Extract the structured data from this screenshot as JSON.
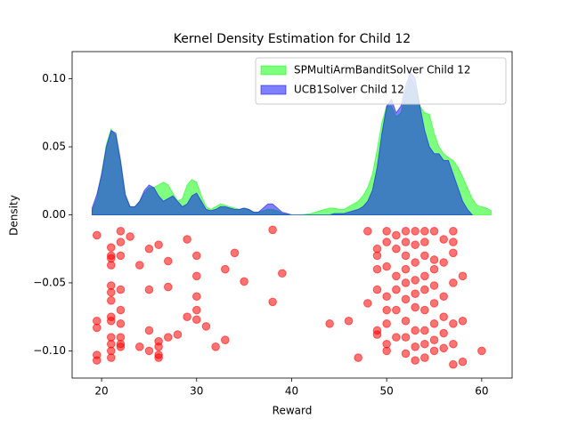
{
  "chart_data": {
    "type": "area",
    "title": "Kernel Density Estimation for Child 12",
    "x_label": "Reward",
    "y_label": "Density",
    "xlim": [
      16.9,
      63.2
    ],
    "ylim": [
      -0.12,
      0.12
    ],
    "xticks": [
      20,
      30,
      40,
      50,
      60
    ],
    "yticks": [
      {
        "value": -0.1,
        "label": "−0.10"
      },
      {
        "value": -0.05,
        "label": "−0.05"
      },
      {
        "value": 0,
        "label": "0.00"
      },
      {
        "value": 0.05,
        "label": "0.05"
      },
      {
        "value": 0.1,
        "label": "0.10"
      }
    ],
    "legend": "upper right",
    "x": [
      19,
      19.5,
      20,
      20.5,
      21,
      21.5,
      22,
      22.5,
      23,
      23.5,
      24,
      24.5,
      25,
      25.5,
      26,
      26.5,
      27,
      27.5,
      28,
      28.5,
      29,
      29.5,
      30,
      30.5,
      31,
      31.5,
      32,
      32.5,
      33,
      33.5,
      34,
      34.5,
      35,
      35.5,
      36,
      36.5,
      37,
      37.5,
      38,
      38.5,
      39,
      39.5,
      40,
      40.5,
      41,
      41.5,
      42,
      42.5,
      43,
      43.5,
      44,
      44.5,
      45,
      45.5,
      46,
      46.5,
      47,
      47.5,
      48,
      48.5,
      49,
      49.5,
      50,
      50.5,
      51,
      51.5,
      52,
      52.5,
      53,
      53.5,
      54,
      54.5,
      55,
      55.5,
      56,
      56.5,
      57,
      57.5,
      58,
      58.5,
      59,
      59.5,
      60,
      60.5,
      61
    ],
    "series": [
      {
        "name": "SPMultiArmBanditSolver Child 12",
        "color": "#00ff00",
        "values": [
          0.003,
          0.012,
          0.03,
          0.052,
          0.063,
          0.058,
          0.038,
          0.014,
          0.006,
          0.006,
          0.01,
          0.016,
          0.02,
          0.02,
          0.022,
          0.024,
          0.022,
          0.016,
          0.01,
          0.012,
          0.022,
          0.026,
          0.024,
          0.014,
          0.006,
          0.004,
          0.006,
          0.008,
          0.007,
          0.006,
          0.005,
          0.004,
          0.005,
          0.004,
          0.002,
          0.002,
          0.003,
          0.004,
          0.004,
          0.003,
          0.001,
          0.0005,
          0,
          0,
          0,
          0.0005,
          0.001,
          0.002,
          0.003,
          0.004,
          0.005,
          0.005,
          0.004,
          0.004,
          0.006,
          0.008,
          0.01,
          0.014,
          0.02,
          0.03,
          0.048,
          0.068,
          0.08,
          0.08,
          0.072,
          0.075,
          0.09,
          0.1,
          0.094,
          0.08,
          0.075,
          0.074,
          0.06,
          0.05,
          0.045,
          0.042,
          0.04,
          0.035,
          0.028,
          0.02,
          0.012,
          0.007,
          0.006,
          0.005,
          0.003
        ]
      },
      {
        "name": "UCB1Solver Child 12",
        "color": "#0000ff",
        "values": [
          0.005,
          0.015,
          0.03,
          0.05,
          0.062,
          0.06,
          0.04,
          0.015,
          0.006,
          0.006,
          0.01,
          0.018,
          0.022,
          0.02,
          0.014,
          0.01,
          0.012,
          0.014,
          0.01,
          0.006,
          0.008,
          0.014,
          0.016,
          0.01,
          0.004,
          0.003,
          0.004,
          0.006,
          0.006,
          0.005,
          0.004,
          0.004,
          0.005,
          0.004,
          0.002,
          0.002,
          0.005,
          0.008,
          0.008,
          0.005,
          0.002,
          0.001,
          0,
          0,
          0,
          0,
          0,
          0,
          0,
          0,
          0,
          0.001,
          0.001,
          0.001,
          0.002,
          0.003,
          0.004,
          0.006,
          0.01,
          0.018,
          0.035,
          0.06,
          0.08,
          0.085,
          0.075,
          0.08,
          0.095,
          0.105,
          0.1,
          0.08,
          0.062,
          0.05,
          0.045,
          0.045,
          0.04,
          0.04,
          0.03,
          0.02,
          0.01,
          0.004,
          0,
          null,
          null,
          null,
          null
        ]
      }
    ],
    "points": {
      "color": "#ff0000",
      "x": [
        19.5,
        19.5,
        19.5,
        19.5,
        19.5,
        21,
        21,
        21,
        21,
        21,
        21,
        21,
        21,
        21,
        21,
        21,
        21,
        21,
        22,
        22,
        22,
        22,
        22,
        22,
        22,
        22,
        22,
        23,
        24,
        24,
        25,
        25,
        25,
        25,
        26,
        26,
        26,
        26,
        26,
        27,
        27,
        27,
        28,
        29,
        29,
        30,
        30,
        30,
        30,
        30,
        31,
        32,
        33,
        33,
        34,
        35,
        38,
        38,
        39,
        44,
        46,
        47,
        48,
        48,
        49,
        49,
        49,
        49,
        49,
        49,
        50,
        50,
        50,
        50,
        50,
        50,
        50,
        50,
        51,
        51,
        51,
        51,
        51,
        51,
        52,
        52,
        52,
        52,
        52,
        52,
        52,
        52,
        52,
        53,
        53,
        53,
        53,
        53,
        53,
        53,
        53,
        53,
        54,
        54,
        54,
        54,
        54,
        54,
        54,
        54,
        54,
        55,
        55,
        55,
        55,
        55,
        55,
        55,
        55,
        56,
        56,
        56,
        56,
        56,
        56,
        57,
        57,
        57,
        57,
        57,
        57,
        57,
        58,
        58,
        58,
        60
      ],
      "y": [
        -0.015,
        -0.078,
        -0.083,
        -0.103,
        -0.107,
        -0.03,
        -0.037,
        -0.052,
        -0.057,
        -0.063,
        -0.075,
        -0.078,
        -0.09,
        -0.095,
        -0.1,
        -0.105,
        -0.024,
        -0.032,
        -0.012,
        -0.02,
        -0.03,
        -0.055,
        -0.07,
        -0.08,
        -0.09,
        -0.095,
        -0.097,
        -0.016,
        -0.037,
        -0.097,
        -0.025,
        -0.055,
        -0.085,
        -0.1,
        -0.022,
        -0.093,
        -0.097,
        -0.103,
        -0.105,
        -0.034,
        -0.053,
        -0.09,
        -0.088,
        -0.018,
        -0.075,
        -0.03,
        -0.045,
        -0.06,
        -0.07,
        -0.077,
        -0.082,
        -0.097,
        -0.04,
        -0.092,
        -0.028,
        -0.049,
        -0.011,
        -0.064,
        -0.043,
        -0.08,
        -0.078,
        -0.105,
        -0.012,
        -0.065,
        -0.025,
        -0.03,
        -0.04,
        -0.055,
        -0.085,
        -0.088,
        -0.012,
        -0.02,
        -0.038,
        -0.06,
        -0.07,
        -0.08,
        -0.095,
        -0.1,
        -0.015,
        -0.025,
        -0.045,
        -0.055,
        -0.07,
        -0.09,
        -0.012,
        -0.02,
        -0.03,
        -0.04,
        -0.05,
        -0.062,
        -0.078,
        -0.09,
        -0.102,
        -0.012,
        -0.022,
        -0.035,
        -0.048,
        -0.058,
        -0.068,
        -0.085,
        -0.097,
        -0.107,
        -0.012,
        -0.02,
        -0.03,
        -0.045,
        -0.055,
        -0.07,
        -0.085,
        -0.095,
        -0.105,
        -0.012,
        -0.033,
        -0.04,
        -0.052,
        -0.065,
        -0.08,
        -0.092,
        -0.1,
        -0.018,
        -0.035,
        -0.06,
        -0.075,
        -0.087,
        -0.098,
        -0.012,
        -0.02,
        -0.028,
        -0.05,
        -0.08,
        -0.095,
        -0.11,
        -0.045,
        -0.078,
        -0.108,
        -0.1
      ]
    }
  }
}
